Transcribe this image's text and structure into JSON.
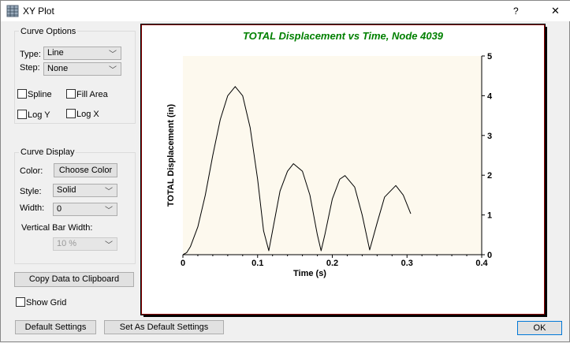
{
  "window": {
    "title": "XY Plot",
    "help": "?",
    "close": "✕",
    "icon": "grid-chart-icon"
  },
  "curve_options": {
    "label": "Curve Options",
    "type_label": "Type:",
    "type_value": "Line",
    "step_label": "Step:",
    "step_value": "None",
    "spline": "Spline",
    "fill_area": "Fill Area",
    "log_y": "Log Y",
    "log_x": "Log X"
  },
  "curve_display": {
    "label": "Curve Display",
    "color_label": "Color:",
    "choose_color": "Choose Color",
    "style_label": "Style:",
    "style_value": "Solid",
    "width_label": "Width:",
    "width_value": "0",
    "vbar_label": "Vertical Bar Width:",
    "vbar_value": "10 %"
  },
  "copy_button": "Copy Data to Clipboard",
  "show_grid": "Show Grid",
  "default_settings": "Default Settings",
  "set_default": "Set As Default Settings",
  "ok": "OK",
  "chart_data": {
    "type": "line",
    "title": "TOTAL Displacement  vs Time, Node 4039",
    "xlabel": "Time (s)",
    "ylabel": "TOTAL Displacement (in)",
    "xlim": [
      0,
      0.4
    ],
    "ylim": [
      0,
      5
    ],
    "xticks": [
      "0",
      "0.1",
      "0.2",
      "0.3",
      "0.4"
    ],
    "yticks": [
      "0",
      "1",
      "2",
      "3",
      "4",
      "5"
    ],
    "grid": false,
    "y_axis_side": "right",
    "colors": {
      "title": "#008000",
      "line": "#000000",
      "plot_bg": "#fdf9ee"
    },
    "x": [
      0,
      0.005,
      0.01,
      0.02,
      0.03,
      0.04,
      0.05,
      0.06,
      0.07,
      0.08,
      0.09,
      0.1,
      0.108,
      0.115,
      0.12,
      0.13,
      0.14,
      0.148,
      0.16,
      0.17,
      0.18,
      0.185,
      0.19,
      0.2,
      0.21,
      0.217,
      0.23,
      0.24,
      0.25,
      0.26,
      0.27,
      0.285,
      0.295,
      0.305
    ],
    "y": [
      0,
      0.05,
      0.2,
      0.7,
      1.5,
      2.5,
      3.4,
      4.0,
      4.23,
      4.0,
      3.2,
      1.9,
      0.6,
      0.1,
      0.6,
      1.6,
      2.1,
      2.29,
      2.1,
      1.5,
      0.5,
      0.1,
      0.5,
      1.4,
      1.9,
      1.99,
      1.7,
      1.0,
      0.12,
      0.8,
      1.45,
      1.74,
      1.5,
      1.03
    ]
  }
}
